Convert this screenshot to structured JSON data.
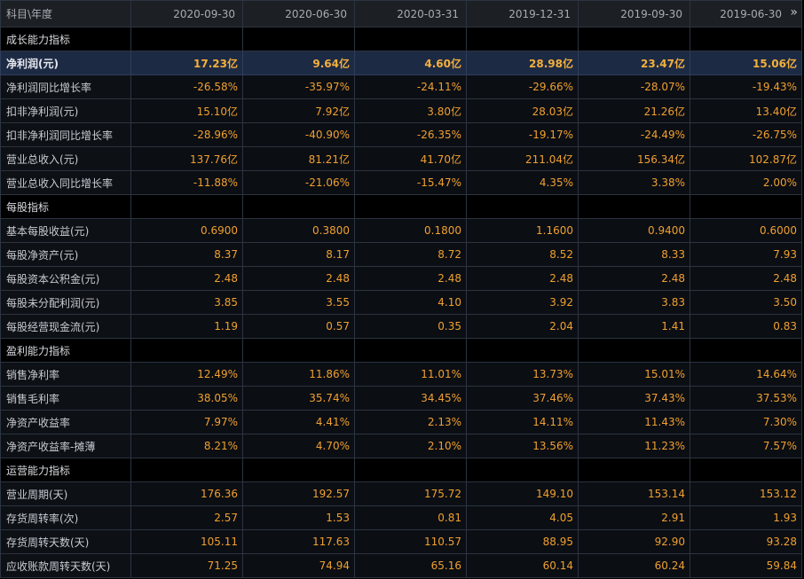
{
  "header": {
    "first": "科目\\年度",
    "dates": [
      "2020-09-30",
      "2020-06-30",
      "2020-03-31",
      "2019-12-31",
      "2019-09-30",
      "2019-06-30"
    ],
    "more_icon": "»"
  },
  "rows": [
    {
      "type": "section",
      "label": "成长能力指标"
    },
    {
      "type": "data",
      "highlight": true,
      "label": "净利润(元)",
      "values": [
        "17.23亿",
        "9.64亿",
        "4.60亿",
        "28.98亿",
        "23.47亿",
        "15.06亿"
      ]
    },
    {
      "type": "data",
      "label": "净利润同比增长率",
      "values": [
        "-26.58%",
        "-35.97%",
        "-24.11%",
        "-29.66%",
        "-28.07%",
        "-19.43%"
      ]
    },
    {
      "type": "data",
      "label": "扣非净利润(元)",
      "values": [
        "15.10亿",
        "7.92亿",
        "3.80亿",
        "28.03亿",
        "21.26亿",
        "13.40亿"
      ]
    },
    {
      "type": "data",
      "label": "扣非净利润同比增长率",
      "values": [
        "-28.96%",
        "-40.90%",
        "-26.35%",
        "-19.17%",
        "-24.49%",
        "-26.75%"
      ]
    },
    {
      "type": "data",
      "label": "营业总收入(元)",
      "values": [
        "137.76亿",
        "81.21亿",
        "41.70亿",
        "211.04亿",
        "156.34亿",
        "102.87亿"
      ]
    },
    {
      "type": "data",
      "label": "营业总收入同比增长率",
      "values": [
        "-11.88%",
        "-21.06%",
        "-15.47%",
        "4.35%",
        "3.38%",
        "2.00%"
      ]
    },
    {
      "type": "section",
      "label": "每股指标"
    },
    {
      "type": "data",
      "label": "基本每股收益(元)",
      "values": [
        "0.6900",
        "0.3800",
        "0.1800",
        "1.1600",
        "0.9400",
        "0.6000"
      ]
    },
    {
      "type": "data",
      "label": "每股净资产(元)",
      "values": [
        "8.37",
        "8.17",
        "8.72",
        "8.52",
        "8.33",
        "7.93"
      ]
    },
    {
      "type": "data",
      "label": "每股资本公积金(元)",
      "values": [
        "2.48",
        "2.48",
        "2.48",
        "2.48",
        "2.48",
        "2.48"
      ]
    },
    {
      "type": "data",
      "label": "每股未分配利润(元)",
      "values": [
        "3.85",
        "3.55",
        "4.10",
        "3.92",
        "3.83",
        "3.50"
      ]
    },
    {
      "type": "data",
      "label": "每股经营现金流(元)",
      "values": [
        "1.19",
        "0.57",
        "0.35",
        "2.04",
        "1.41",
        "0.83"
      ]
    },
    {
      "type": "section",
      "label": "盈利能力指标"
    },
    {
      "type": "data",
      "label": "销售净利率",
      "values": [
        "12.49%",
        "11.86%",
        "11.01%",
        "13.73%",
        "15.01%",
        "14.64%"
      ]
    },
    {
      "type": "data",
      "label": "销售毛利率",
      "values": [
        "38.05%",
        "35.74%",
        "34.45%",
        "37.46%",
        "37.43%",
        "37.53%"
      ]
    },
    {
      "type": "data",
      "label": "净资产收益率",
      "values": [
        "7.97%",
        "4.41%",
        "2.13%",
        "14.11%",
        "11.43%",
        "7.30%"
      ]
    },
    {
      "type": "data",
      "label": "净资产收益率-摊薄",
      "values": [
        "8.21%",
        "4.70%",
        "2.10%",
        "13.56%",
        "11.23%",
        "7.57%"
      ]
    },
    {
      "type": "section",
      "label": "运营能力指标"
    },
    {
      "type": "data",
      "label": "营业周期(天)",
      "values": [
        "176.36",
        "192.57",
        "175.72",
        "149.10",
        "153.14",
        "153.12"
      ]
    },
    {
      "type": "data",
      "label": "存货周转率(次)",
      "values": [
        "2.57",
        "1.53",
        "0.81",
        "4.05",
        "2.91",
        "1.93"
      ]
    },
    {
      "type": "data",
      "label": "存货周转天数(天)",
      "values": [
        "105.11",
        "117.63",
        "110.57",
        "88.95",
        "92.90",
        "93.28"
      ]
    },
    {
      "type": "data",
      "label": "应收账款周转天数(天)",
      "values": [
        "71.25",
        "74.94",
        "65.16",
        "60.14",
        "60.24",
        "59.84"
      ]
    }
  ],
  "colors": {
    "background": "#000000",
    "value_text": "#f0a030",
    "label_text": "#c8ccd2",
    "header_bg": "#1c1f24",
    "highlight_row_bg": "#1d2a44",
    "grid_line": "#2c3440"
  }
}
